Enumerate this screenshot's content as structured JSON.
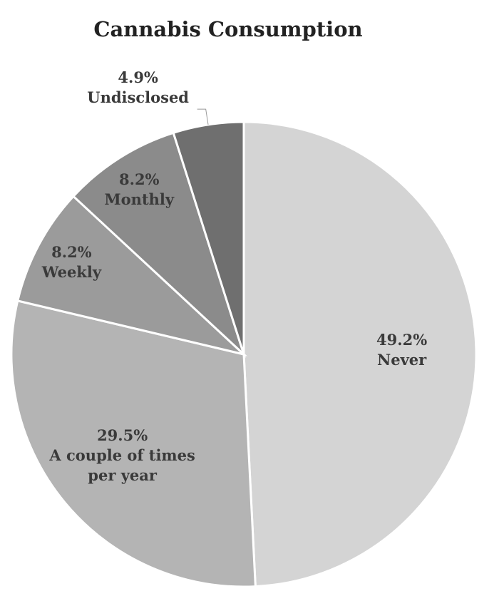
{
  "chart_data": {
    "type": "pie",
    "title": "Cannabis Consumption",
    "categories": [
      "Never",
      "A couple of times per year",
      "Weekly",
      "Monthly",
      "Undisclosed"
    ],
    "values": [
      49.2,
      29.5,
      8.2,
      8.2,
      4.9
    ],
    "value_labels": [
      "49.2%",
      "29.5%",
      "8.2%",
      "8.2%",
      "4.9%"
    ],
    "colors": [
      "#d4d4d4",
      "#b4b4b4",
      "#9b9b9b",
      "#8b8b8b",
      "#6f6f6f"
    ]
  }
}
